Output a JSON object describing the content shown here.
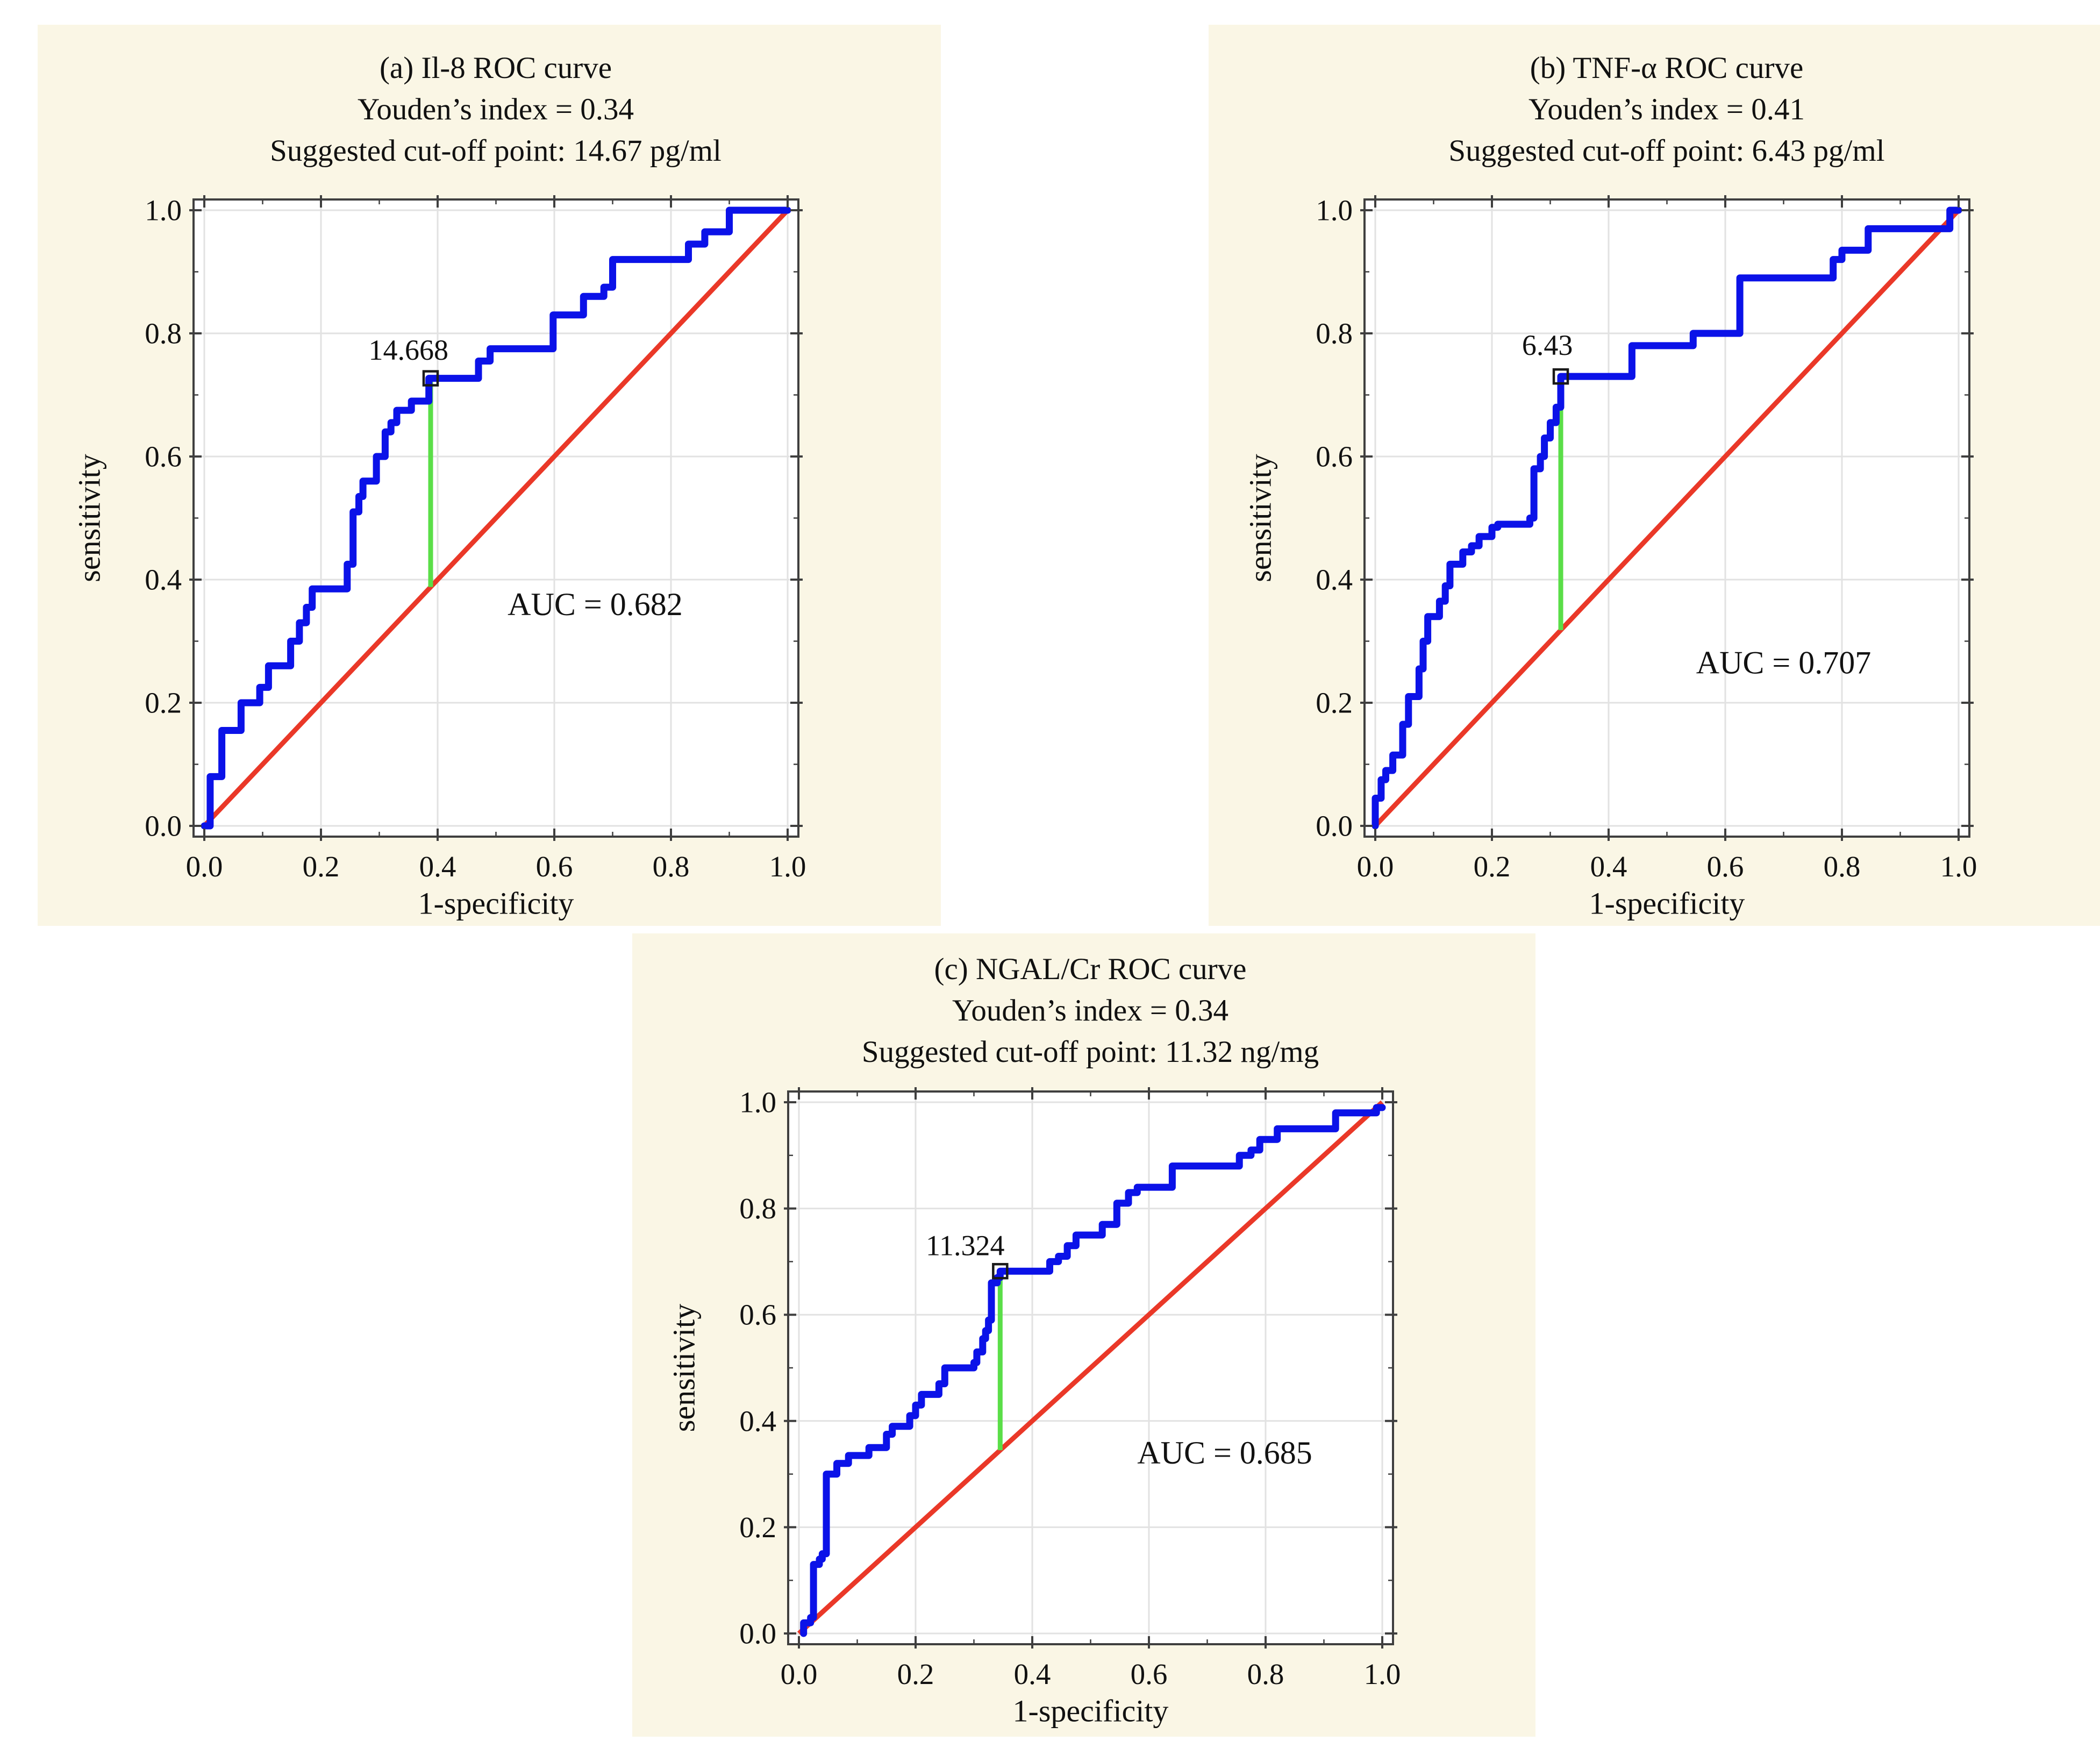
{
  "colors": {
    "page_bg": "#ffffff",
    "panel_bg": "#faf6e5",
    "plot_bg": "#ffffff",
    "grid": "#e2e2e2",
    "frame": "#3f3f3f",
    "roc_curve": "#0b12e8",
    "diagonal": "#ea3828",
    "cutoff_line": "#5ade48",
    "marker": "#1a1a1a",
    "text": "#111111"
  },
  "axes": {
    "x_label": "1-specificity",
    "y_label": "sensitivity",
    "tick_labels": [
      "0.0",
      "0.2",
      "0.4",
      "0.6",
      "0.8",
      "1.0"
    ],
    "tick_values": [
      0,
      0.2,
      0.4,
      0.6,
      0.8,
      1
    ],
    "minor_tick_step": 0.1,
    "x_range": [
      0,
      1
    ],
    "y_range": [
      0,
      1
    ],
    "grid": "on"
  },
  "chart_data": [
    {
      "id": "a",
      "type": "line",
      "title": "(a) Il-8 ROC curve",
      "subtitle_youden": "Youden’s index = 0.34",
      "subtitle_cutoff": "Suggested cut-off point: 14.67 pg/ml",
      "xlabel": "1-specificity",
      "ylabel": "sensitivity",
      "xlim": [
        0,
        1
      ],
      "ylim": [
        0,
        1
      ],
      "grid": true,
      "auc_value": 0.682,
      "auc_label": "AUC = 0.682",
      "auc_label_pos": [
        0.67,
        0.36
      ],
      "youden_index": 0.34,
      "cutoff_value_label": "14.668",
      "cutoff_point": [
        0.388,
        0.727
      ],
      "cutoff_label_pos": [
        0.35,
        0.757
      ],
      "youden_segment": [
        [
          0.388,
          0.388
        ],
        [
          0.388,
          0.727
        ]
      ],
      "diagonal": [
        [
          0,
          0
        ],
        [
          1,
          1
        ]
      ],
      "roc_points": [
        [
          0,
          0
        ],
        [
          0.01,
          0
        ],
        [
          0.01,
          0.08
        ],
        [
          0.03,
          0.08
        ],
        [
          0.03,
          0.155
        ],
        [
          0.063,
          0.155
        ],
        [
          0.063,
          0.2
        ],
        [
          0.095,
          0.2
        ],
        [
          0.095,
          0.225
        ],
        [
          0.11,
          0.225
        ],
        [
          0.11,
          0.26
        ],
        [
          0.148,
          0.26
        ],
        [
          0.148,
          0.3
        ],
        [
          0.163,
          0.3
        ],
        [
          0.163,
          0.33
        ],
        [
          0.175,
          0.33
        ],
        [
          0.175,
          0.355
        ],
        [
          0.185,
          0.355
        ],
        [
          0.185,
          0.385
        ],
        [
          0.245,
          0.385
        ],
        [
          0.245,
          0.425
        ],
        [
          0.255,
          0.425
        ],
        [
          0.255,
          0.51
        ],
        [
          0.265,
          0.51
        ],
        [
          0.265,
          0.535
        ],
        [
          0.272,
          0.535
        ],
        [
          0.272,
          0.56
        ],
        [
          0.295,
          0.56
        ],
        [
          0.295,
          0.6
        ],
        [
          0.31,
          0.6
        ],
        [
          0.31,
          0.64
        ],
        [
          0.32,
          0.64
        ],
        [
          0.32,
          0.655
        ],
        [
          0.33,
          0.655
        ],
        [
          0.33,
          0.675
        ],
        [
          0.355,
          0.675
        ],
        [
          0.355,
          0.69
        ],
        [
          0.385,
          0.69
        ],
        [
          0.385,
          0.727
        ],
        [
          0.47,
          0.727
        ],
        [
          0.47,
          0.755
        ],
        [
          0.49,
          0.755
        ],
        [
          0.49,
          0.775
        ],
        [
          0.598,
          0.775
        ],
        [
          0.598,
          0.83
        ],
        [
          0.65,
          0.83
        ],
        [
          0.65,
          0.86
        ],
        [
          0.685,
          0.86
        ],
        [
          0.685,
          0.875
        ],
        [
          0.7,
          0.875
        ],
        [
          0.7,
          0.92
        ],
        [
          0.83,
          0.92
        ],
        [
          0.83,
          0.945
        ],
        [
          0.858,
          0.945
        ],
        [
          0.858,
          0.965
        ],
        [
          0.9,
          0.965
        ],
        [
          0.9,
          1
        ],
        [
          1,
          1
        ]
      ]
    },
    {
      "id": "b",
      "type": "line",
      "title": "(b) TNF-α ROC curve",
      "subtitle_youden": "Youden’s index = 0.41",
      "subtitle_cutoff": "Suggested cut-off point: 6.43 pg/ml",
      "xlabel": "1-specificity",
      "ylabel": "sensitivity",
      "xlim": [
        0,
        1
      ],
      "ylim": [
        0,
        1
      ],
      "grid": true,
      "auc_value": 0.707,
      "auc_label": "AUC = 0.707",
      "auc_label_pos": [
        0.7,
        0.265
      ],
      "youden_index": 0.41,
      "cutoff_value_label": "6.43",
      "cutoff_point": [
        0.318,
        0.73
      ],
      "cutoff_label_pos": [
        0.295,
        0.765
      ],
      "youden_segment": [
        [
          0.318,
          0.318
        ],
        [
          0.318,
          0.73
        ]
      ],
      "diagonal": [
        [
          0,
          0
        ],
        [
          1,
          1
        ]
      ],
      "roc_points": [
        [
          0,
          0
        ],
        [
          0,
          0.045
        ],
        [
          0.01,
          0.045
        ],
        [
          0.01,
          0.075
        ],
        [
          0.018,
          0.075
        ],
        [
          0.018,
          0.09
        ],
        [
          0.03,
          0.09
        ],
        [
          0.03,
          0.115
        ],
        [
          0.047,
          0.115
        ],
        [
          0.047,
          0.165
        ],
        [
          0.057,
          0.165
        ],
        [
          0.057,
          0.21
        ],
        [
          0.075,
          0.21
        ],
        [
          0.075,
          0.255
        ],
        [
          0.082,
          0.255
        ],
        [
          0.082,
          0.3
        ],
        [
          0.09,
          0.3
        ],
        [
          0.09,
          0.34
        ],
        [
          0.11,
          0.34
        ],
        [
          0.11,
          0.365
        ],
        [
          0.12,
          0.365
        ],
        [
          0.12,
          0.39
        ],
        [
          0.128,
          0.39
        ],
        [
          0.128,
          0.425
        ],
        [
          0.15,
          0.425
        ],
        [
          0.15,
          0.445
        ],
        [
          0.165,
          0.445
        ],
        [
          0.165,
          0.455
        ],
        [
          0.178,
          0.455
        ],
        [
          0.178,
          0.47
        ],
        [
          0.2,
          0.47
        ],
        [
          0.2,
          0.485
        ],
        [
          0.21,
          0.485
        ],
        [
          0.21,
          0.49
        ],
        [
          0.265,
          0.49
        ],
        [
          0.265,
          0.5
        ],
        [
          0.272,
          0.5
        ],
        [
          0.272,
          0.58
        ],
        [
          0.283,
          0.58
        ],
        [
          0.283,
          0.6
        ],
        [
          0.29,
          0.6
        ],
        [
          0.29,
          0.63
        ],
        [
          0.3,
          0.63
        ],
        [
          0.3,
          0.655
        ],
        [
          0.31,
          0.655
        ],
        [
          0.31,
          0.68
        ],
        [
          0.318,
          0.68
        ],
        [
          0.318,
          0.73
        ],
        [
          0.44,
          0.73
        ],
        [
          0.44,
          0.78
        ],
        [
          0.545,
          0.78
        ],
        [
          0.545,
          0.8
        ],
        [
          0.625,
          0.8
        ],
        [
          0.625,
          0.89
        ],
        [
          0.785,
          0.89
        ],
        [
          0.785,
          0.92
        ],
        [
          0.8,
          0.92
        ],
        [
          0.8,
          0.935
        ],
        [
          0.845,
          0.935
        ],
        [
          0.845,
          0.97
        ],
        [
          0.985,
          0.97
        ],
        [
          0.985,
          1
        ],
        [
          1,
          1
        ]
      ]
    },
    {
      "id": "c",
      "type": "line",
      "title": "(c) NGAL/Cr ROC curve",
      "subtitle_youden": "Youden’s index = 0.34",
      "subtitle_cutoff": "Suggested cut-off point: 11.32 ng/mg",
      "xlabel": "1-specificity",
      "ylabel": "sensitivity",
      "xlim": [
        0,
        1
      ],
      "ylim": [
        0,
        1
      ],
      "grid": true,
      "auc_value": 0.685,
      "auc_label": "AUC = 0.685",
      "auc_label_pos": [
        0.73,
        0.34
      ],
      "youden_index": 0.34,
      "cutoff_value_label": "11.324",
      "cutoff_point": [
        0.345,
        0.682
      ],
      "cutoff_label_pos": [
        0.285,
        0.712
      ],
      "youden_segment": [
        [
          0.345,
          0.345
        ],
        [
          0.345,
          0.682
        ]
      ],
      "diagonal": [
        [
          0,
          0
        ],
        [
          1,
          1
        ]
      ],
      "roc_points": [
        [
          0.008,
          0
        ],
        [
          0.008,
          0.02
        ],
        [
          0.02,
          0.02
        ],
        [
          0.02,
          0.03
        ],
        [
          0.025,
          0.03
        ],
        [
          0.025,
          0.13
        ],
        [
          0.035,
          0.13
        ],
        [
          0.035,
          0.14
        ],
        [
          0.04,
          0.14
        ],
        [
          0.04,
          0.15
        ],
        [
          0.047,
          0.15
        ],
        [
          0.047,
          0.3
        ],
        [
          0.065,
          0.3
        ],
        [
          0.065,
          0.32
        ],
        [
          0.085,
          0.32
        ],
        [
          0.085,
          0.335
        ],
        [
          0.12,
          0.335
        ],
        [
          0.12,
          0.35
        ],
        [
          0.15,
          0.35
        ],
        [
          0.15,
          0.375
        ],
        [
          0.16,
          0.375
        ],
        [
          0.16,
          0.39
        ],
        [
          0.19,
          0.39
        ],
        [
          0.19,
          0.41
        ],
        [
          0.2,
          0.41
        ],
        [
          0.2,
          0.43
        ],
        [
          0.21,
          0.43
        ],
        [
          0.21,
          0.45
        ],
        [
          0.24,
          0.45
        ],
        [
          0.24,
          0.47
        ],
        [
          0.25,
          0.47
        ],
        [
          0.25,
          0.5
        ],
        [
          0.3,
          0.5
        ],
        [
          0.3,
          0.51
        ],
        [
          0.305,
          0.51
        ],
        [
          0.305,
          0.53
        ],
        [
          0.315,
          0.53
        ],
        [
          0.315,
          0.555
        ],
        [
          0.32,
          0.555
        ],
        [
          0.32,
          0.57
        ],
        [
          0.325,
          0.57
        ],
        [
          0.325,
          0.59
        ],
        [
          0.33,
          0.59
        ],
        [
          0.33,
          0.66
        ],
        [
          0.34,
          0.66
        ],
        [
          0.34,
          0.67
        ],
        [
          0.345,
          0.67
        ],
        [
          0.345,
          0.682
        ],
        [
          0.43,
          0.682
        ],
        [
          0.43,
          0.7
        ],
        [
          0.445,
          0.7
        ],
        [
          0.445,
          0.71
        ],
        [
          0.46,
          0.71
        ],
        [
          0.46,
          0.73
        ],
        [
          0.475,
          0.73
        ],
        [
          0.475,
          0.75
        ],
        [
          0.52,
          0.75
        ],
        [
          0.52,
          0.77
        ],
        [
          0.545,
          0.77
        ],
        [
          0.545,
          0.81
        ],
        [
          0.565,
          0.81
        ],
        [
          0.565,
          0.83
        ],
        [
          0.58,
          0.83
        ],
        [
          0.58,
          0.84
        ],
        [
          0.64,
          0.84
        ],
        [
          0.64,
          0.88
        ],
        [
          0.755,
          0.88
        ],
        [
          0.755,
          0.9
        ],
        [
          0.775,
          0.9
        ],
        [
          0.775,
          0.91
        ],
        [
          0.79,
          0.91
        ],
        [
          0.79,
          0.93
        ],
        [
          0.82,
          0.93
        ],
        [
          0.82,
          0.95
        ],
        [
          0.92,
          0.95
        ],
        [
          0.92,
          0.98
        ],
        [
          0.99,
          0.98
        ],
        [
          0.99,
          0.99
        ],
        [
          1,
          0.99
        ]
      ]
    }
  ]
}
